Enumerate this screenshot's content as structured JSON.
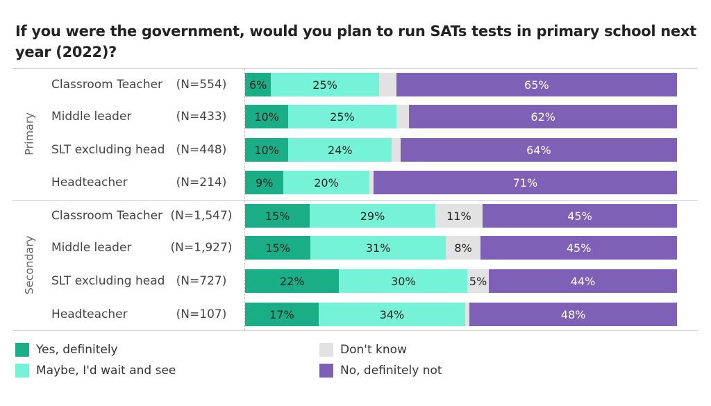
{
  "title": "If you were the government, would you plan to run SATs tests in primary school next year (2022)?",
  "colors": {
    "yes": "#1aae87",
    "maybe": "#76f3d6",
    "dontknow": "#e2e2e2",
    "no": "#7e60b7"
  },
  "chart_data": {
    "type": "bar",
    "orientation": "horizontal-stacked-100",
    "title": "If you were the government, would you plan to run SATs tests in primary school next year (2022)?",
    "groups": [
      "Primary",
      "Secondary"
    ],
    "categories": [
      {
        "group": "Primary",
        "label": "Classroom Teacher",
        "n": "(N=554)"
      },
      {
        "group": "Primary",
        "label": "Middle leader",
        "n": "(N=433)"
      },
      {
        "group": "Primary",
        "label": "SLT excluding head",
        "n": "(N=448)"
      },
      {
        "group": "Primary",
        "label": "Headteacher",
        "n": "(N=214)"
      },
      {
        "group": "Secondary",
        "label": "Classroom Teacher",
        "n": "(N=1,547)"
      },
      {
        "group": "Secondary",
        "label": "Middle leader",
        "n": "(N=1,927)"
      },
      {
        "group": "Secondary",
        "label": "SLT excluding head",
        "n": "(N=727)"
      },
      {
        "group": "Secondary",
        "label": "Headteacher",
        "n": "(N=107)"
      }
    ],
    "series": [
      {
        "key": "yes",
        "name": "Yes, definitely",
        "values": [
          6,
          10,
          10,
          9,
          15,
          15,
          22,
          17
        ]
      },
      {
        "key": "maybe",
        "name": "Maybe, I'd wait and see",
        "values": [
          25,
          25,
          24,
          20,
          29,
          31,
          30,
          34
        ]
      },
      {
        "key": "dontknow",
        "name": "Don't know",
        "values": [
          4,
          3,
          2,
          1,
          11,
          8,
          5,
          1
        ]
      },
      {
        "key": "no",
        "name": "No, definitely not",
        "values": [
          65,
          62,
          64,
          71,
          45,
          45,
          44,
          48
        ]
      }
    ],
    "label_threshold": 5,
    "legend": "bottom"
  }
}
